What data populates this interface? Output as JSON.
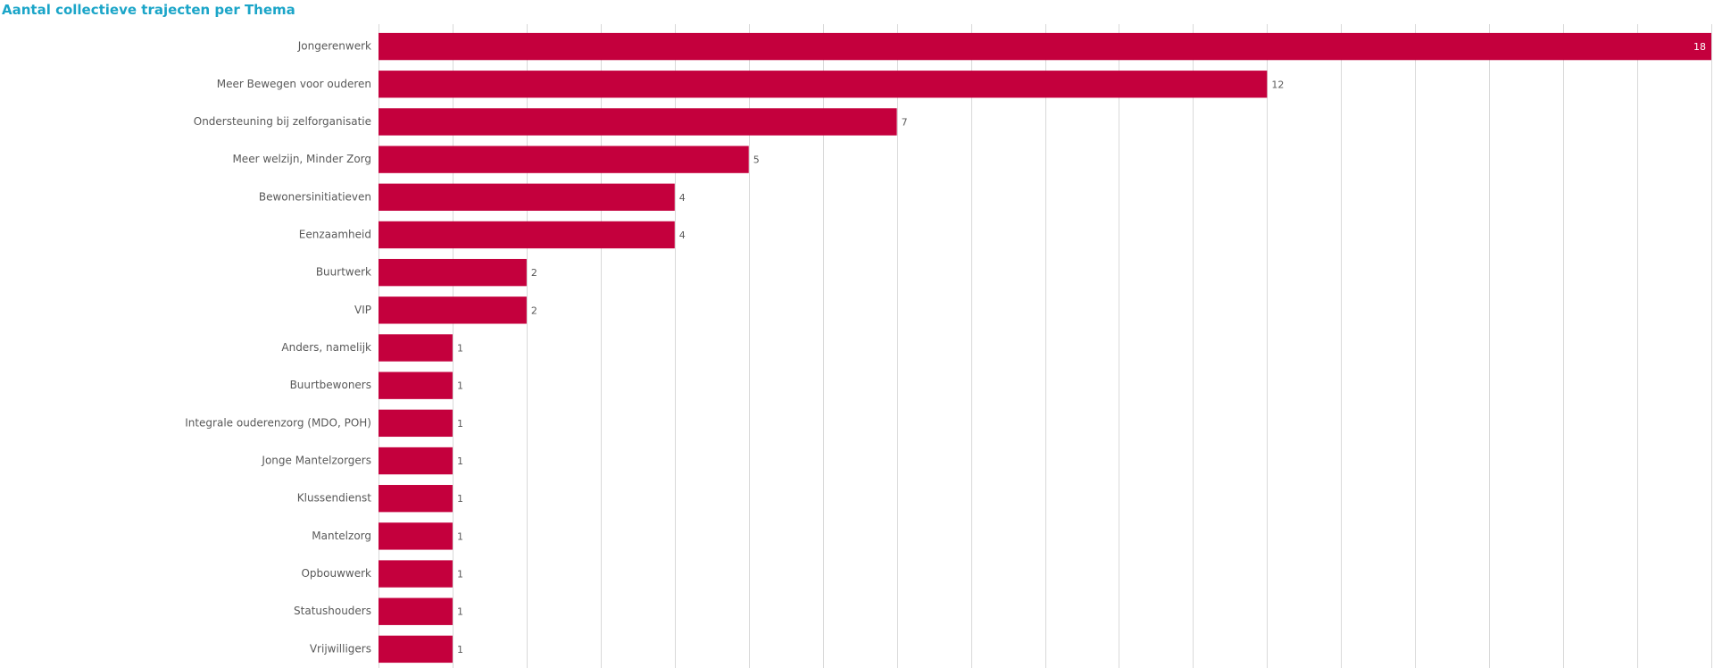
{
  "chart_data": {
    "type": "bar",
    "orientation": "horizontal",
    "title": "Aantal collectieve trajecten per Thema",
    "categories": [
      "Jongerenwerk",
      "Meer Bewegen voor ouderen",
      "Ondersteuning bij zelforganisatie",
      "Meer welzijn, Minder Zorg",
      "Bewonersinitiatieven",
      "Eenzaamheid",
      "Buurtwerk",
      "VIP",
      "Anders, namelijk",
      "Buurtbewoners",
      "Integrale ouderenzorg (MDO, POH)",
      "Jonge Mantelzorgers",
      "Klussendienst",
      "Mantelzorg",
      "Opbouwwerk",
      "Statushouders",
      "Vrijwilligers"
    ],
    "values": [
      18,
      12,
      7,
      5,
      4,
      4,
      2,
      2,
      1,
      1,
      1,
      1,
      1,
      1,
      1,
      1,
      1
    ],
    "color": "#c4003d",
    "xlim": [
      0,
      18
    ],
    "xticks": [
      0,
      1,
      2,
      3,
      4,
      5,
      6,
      7,
      8,
      9,
      10,
      11,
      12,
      13,
      14,
      15,
      16,
      17,
      18
    ],
    "grid": true
  }
}
